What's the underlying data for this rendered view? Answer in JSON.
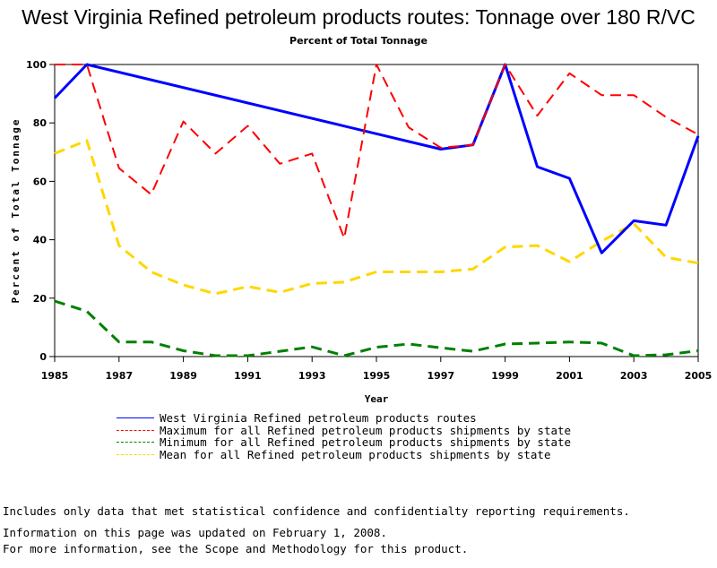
{
  "page": {
    "title": "West Virginia Refined petroleum products routes: Tonnage over 180 R/VC",
    "subtitle": "Percent of Total Tonnage",
    "notes": [
      "Includes only data that met statistical confidence and confidentialty reporting requirements.",
      "For more information, see the Scope and Methodology for this product."
    ],
    "updated": "Information on this page was updated on February 1, 2008."
  },
  "chart_data": {
    "type": "line",
    "title": "West Virginia Refined petroleum products routes: Tonnage over 180 R/VC",
    "subtitle": "Percent of Total Tonnage",
    "xlabel": "Year",
    "ylabel": "Percent of Total Tonnage",
    "xlim": [
      1985,
      2005
    ],
    "ylim": [
      0,
      100
    ],
    "xticks": [
      1985,
      1987,
      1989,
      1991,
      1993,
      1995,
      1997,
      1999,
      2001,
      2003,
      2005
    ],
    "yticks": [
      0,
      20,
      40,
      60,
      80,
      100
    ],
    "grid": false,
    "legend_position": "bottom",
    "series": [
      {
        "name": "West Virginia Refined petroleum products routes",
        "color": "#0000ff",
        "style": "solid",
        "width": 3,
        "points": [
          [
            1985,
            88.5
          ],
          [
            1986,
            100
          ],
          [
            1997,
            71
          ],
          [
            1998,
            72.5
          ],
          [
            1999,
            100
          ],
          [
            2000,
            65
          ],
          [
            2001,
            61
          ],
          [
            2002,
            35.5
          ],
          [
            2003,
            46.5
          ],
          [
            2004,
            45
          ],
          [
            2005,
            75.5
          ]
        ]
      },
      {
        "name": "Maximum for all Refined petroleum products shipments by state",
        "color": "#ff0000",
        "style": "dashed",
        "width": 2,
        "points": [
          [
            1985,
            100
          ],
          [
            1986,
            100
          ],
          [
            1987,
            64.5
          ],
          [
            1988,
            55.5
          ],
          [
            1989,
            80.5
          ],
          [
            1990,
            69.5
          ],
          [
            1991,
            79
          ],
          [
            1992,
            66
          ],
          [
            1993,
            69.5
          ],
          [
            1994,
            40.5
          ],
          [
            1995,
            100
          ],
          [
            1996,
            78.5
          ],
          [
            1997,
            71.5
          ],
          [
            1998,
            72.5
          ],
          [
            1999,
            100
          ],
          [
            2000,
            82.5
          ],
          [
            2001,
            97
          ],
          [
            2002,
            89.5
          ],
          [
            2003,
            89.5
          ],
          [
            2004,
            82
          ],
          [
            2005,
            76
          ]
        ]
      },
      {
        "name": "Minimum for all Refined petroleum products shipments by state",
        "color": "#008000",
        "style": "dashed",
        "width": 3,
        "points": [
          [
            1985,
            19
          ],
          [
            1986,
            15.5
          ],
          [
            1987,
            5
          ],
          [
            1988,
            5
          ],
          [
            1989,
            2
          ],
          [
            1990,
            0.3
          ],
          [
            1991,
            0.3
          ],
          [
            1992,
            1.8
          ],
          [
            1993,
            3.3
          ],
          [
            1994,
            0.3
          ],
          [
            1995,
            3.2
          ],
          [
            1996,
            4.3
          ],
          [
            1997,
            3
          ],
          [
            1998,
            1.8
          ],
          [
            1999,
            4.3
          ],
          [
            2000,
            4.6
          ],
          [
            2001,
            5
          ],
          [
            2002,
            4.6
          ],
          [
            2003,
            0.3
          ],
          [
            2004,
            0.6
          ],
          [
            2005,
            2
          ]
        ]
      },
      {
        "name": "Mean for all Refined petroleum products shipments by state",
        "color": "#ffd700",
        "style": "dashed",
        "width": 3,
        "points": [
          [
            1985,
            69.5
          ],
          [
            1986,
            74
          ],
          [
            1987,
            38
          ],
          [
            1988,
            29
          ],
          [
            1989,
            24.5
          ],
          [
            1990,
            21.5
          ],
          [
            1991,
            24
          ],
          [
            1992,
            22
          ],
          [
            1993,
            25
          ],
          [
            1994,
            25.5
          ],
          [
            1995,
            29
          ],
          [
            1996,
            29
          ],
          [
            1997,
            29
          ],
          [
            1998,
            30
          ],
          [
            1999,
            37.5
          ],
          [
            2000,
            38
          ],
          [
            2001,
            32.5
          ],
          [
            2002,
            39.5
          ],
          [
            2003,
            45.5
          ],
          [
            2004,
            34
          ],
          [
            2005,
            32
          ]
        ]
      }
    ]
  }
}
